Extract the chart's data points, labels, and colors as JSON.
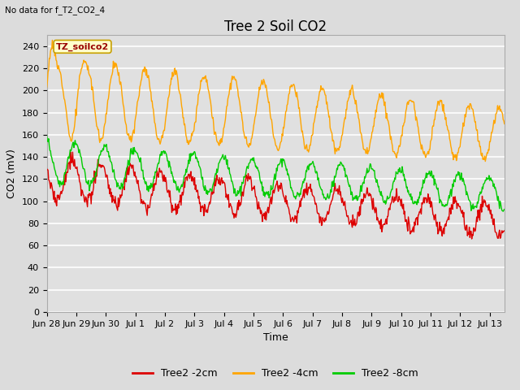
{
  "title": "Tree 2 Soil CO2",
  "subtitle": "No data for f_T2_CO2_4",
  "ylabel": "CO2 (mV)",
  "xlabel": "Time",
  "annotation": "TZ_soilco2",
  "fig_bg_color": "#dcdcdc",
  "plot_bg_color": "#e0e0e0",
  "ylim": [
    0,
    250
  ],
  "yticks": [
    0,
    20,
    40,
    60,
    80,
    100,
    120,
    140,
    160,
    180,
    200,
    220,
    240
  ],
  "xtick_labels": [
    "Jun 28",
    "Jun 29",
    "Jun 30",
    "Jul 1",
    "Jul 2",
    "Jul 3",
    "Jul 4",
    "Jul 5",
    "Jul 6",
    "Jul 7",
    "Jul 8",
    "Jul 9",
    "Jul 10",
    "Jul 11",
    "Jul 12",
    "Jul 13"
  ],
  "line_colors": {
    "2cm": "#dd0000",
    "4cm": "#ffa500",
    "8cm": "#00cc00"
  },
  "legend_labels": [
    "Tree2 -2cm",
    "Tree2 -4cm",
    "Tree2 -8cm"
  ],
  "legend_colors": [
    "#dd0000",
    "#ffa500",
    "#00cc00"
  ],
  "title_fontsize": 12,
  "axis_fontsize": 9,
  "tick_fontsize": 8,
  "legend_fontsize": 9,
  "n_days": 15.5,
  "period_hours": 24,
  "seed": 12
}
